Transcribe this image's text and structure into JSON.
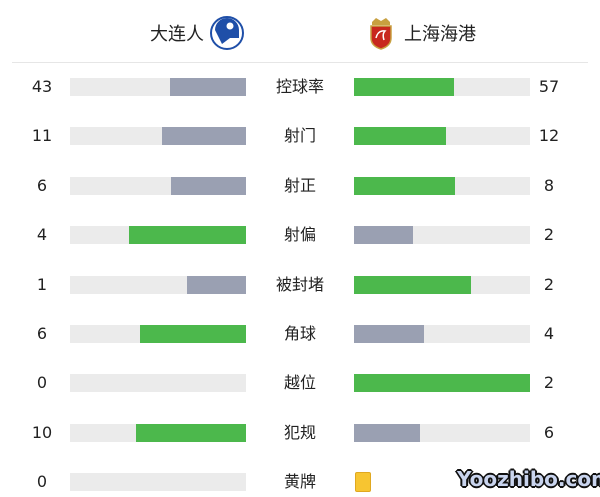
{
  "home": {
    "name": "大连人",
    "logo": "dalian-pro-badge"
  },
  "away": {
    "name": "上海海港",
    "logo": "shanghai-port-crest"
  },
  "colors": {
    "leader": "#4cb84c",
    "trailer": "#9aa0b2",
    "track": "#ebebeb",
    "yellow_card": "#f7c531"
  },
  "stats": [
    {
      "label": "控球率",
      "home": "43",
      "away": "57"
    },
    {
      "label": "射门",
      "home": "11",
      "away": "12"
    },
    {
      "label": "射正",
      "home": "6",
      "away": "8"
    },
    {
      "label": "射偏",
      "home": "4",
      "away": "2"
    },
    {
      "label": "被封堵",
      "home": "1",
      "away": "2"
    },
    {
      "label": "角球",
      "home": "6",
      "away": "4"
    },
    {
      "label": "越位",
      "home": "0",
      "away": "2"
    },
    {
      "label": "犯规",
      "home": "10",
      "away": "6"
    }
  ],
  "yellow_cards": {
    "label": "黄牌",
    "home": "0",
    "away_icon": "yellow-card"
  },
  "watermark": "Yoozhibo.com"
}
